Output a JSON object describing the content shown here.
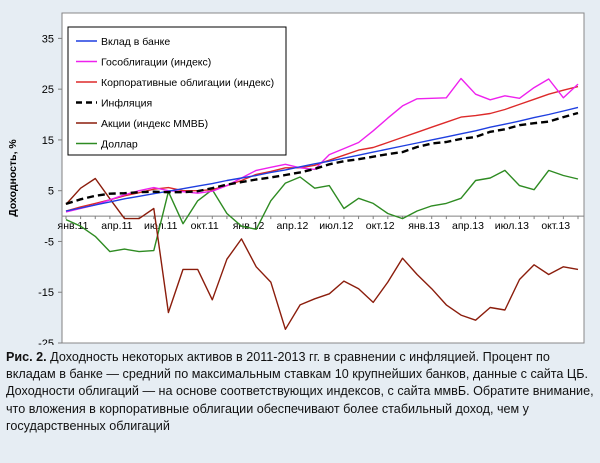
{
  "chart_data": {
    "type": "line",
    "ylabel": "Доходность, %",
    "ylim": [
      -25,
      40
    ],
    "yticks": [
      35,
      25,
      15,
      5,
      -5,
      -15,
      -25
    ],
    "xtick_labels": [
      "янв.11",
      "апр.11",
      "июл.11",
      "окт.11",
      "янв.12",
      "апр.12",
      "июл.12",
      "окт.12",
      "янв.13",
      "апр.13",
      "июл.13",
      "окт.13"
    ],
    "xtick_months": [
      0,
      3,
      6,
      9,
      12,
      15,
      18,
      21,
      24,
      27,
      30,
      33
    ],
    "x": [
      0,
      1,
      2,
      3,
      4,
      5,
      6,
      7,
      8,
      9,
      10,
      11,
      12,
      13,
      14,
      15,
      16,
      17,
      18,
      19,
      20,
      21,
      22,
      23,
      24,
      25,
      26,
      27,
      28,
      29,
      30,
      31,
      32,
      33,
      34,
      35
    ],
    "legend_position": "top-left",
    "grid": false,
    "series": [
      {
        "name": "Вклад в банке",
        "color": "#1f3fe0",
        "dash": "solid",
        "values": [
          1.0,
          1.6,
          2.2,
          2.8,
          3.4,
          3.9,
          4.4,
          4.9,
          5.4,
          5.9,
          6.4,
          7.0,
          7.5,
          8.0,
          8.6,
          9.1,
          9.7,
          10.3,
          10.8,
          11.4,
          12.0,
          12.6,
          13.2,
          13.8,
          14.4,
          15.0,
          15.6,
          16.2,
          16.8,
          17.5,
          18.1,
          18.7,
          19.4,
          20.0,
          20.7,
          21.4
        ]
      },
      {
        "name": "Гособлигации (индекс)",
        "color": "#ee21ee",
        "dash": "solid",
        "values": [
          0.8,
          1.5,
          2.2,
          3.2,
          4.2,
          5.0,
          5.6,
          5.0,
          4.8,
          4.5,
          4.9,
          6.0,
          7.5,
          9.0,
          9.6,
          10.2,
          9.5,
          9.2,
          12.1,
          13.3,
          14.5,
          16.8,
          19.3,
          21.7,
          23.1,
          23.2,
          23.3,
          27.1,
          24.0,
          22.9,
          23.7,
          23.2,
          25.3,
          27.0,
          23.3,
          26.0
        ]
      },
      {
        "name": "Корпоративные облигации (индекс)",
        "color": "#dd2a2a",
        "dash": "solid",
        "values": [
          1.0,
          1.8,
          2.5,
          3.2,
          4.0,
          4.6,
          5.3,
          5.6,
          5.0,
          5.0,
          5.2,
          6.0,
          7.0,
          8.2,
          8.8,
          9.5,
          9.5,
          10.0,
          11.0,
          12.0,
          13.0,
          13.5,
          14.5,
          15.5,
          16.5,
          17.5,
          18.5,
          19.5,
          19.8,
          20.2,
          21.0,
          22.0,
          23.0,
          24.0,
          24.8,
          25.5
        ]
      },
      {
        "name": "Инфляция",
        "color": "#000000",
        "dash": "dashed",
        "values": [
          2.4,
          3.3,
          4.0,
          4.4,
          4.5,
          4.7,
          4.8,
          4.7,
          4.7,
          4.9,
          5.5,
          6.2,
          6.7,
          7.2,
          7.6,
          8.1,
          8.6,
          9.3,
          10.2,
          10.8,
          11.2,
          11.7,
          12.2,
          12.6,
          13.6,
          14.3,
          14.6,
          15.2,
          15.6,
          16.6,
          17.1,
          17.9,
          18.3,
          18.6,
          19.5,
          20.3
        ]
      },
      {
        "name": "Акции (индекс ММВБ)",
        "color": "#8b1d0c",
        "dash": "solid",
        "values": [
          2.3,
          5.5,
          7.4,
          3.4,
          -0.5,
          -0.5,
          1.5,
          -19.0,
          -10.5,
          -10.5,
          -16.5,
          -8.5,
          -4.5,
          -10.0,
          -13.0,
          -22.3,
          -17.5,
          -16.3,
          -15.3,
          -12.8,
          -14.3,
          -17.0,
          -13.0,
          -8.3,
          -11.5,
          -14.3,
          -17.5,
          -19.5,
          -20.5,
          -18.0,
          -18.5,
          -12.5,
          -9.6,
          -11.5,
          -10.0,
          -10.5
        ]
      },
      {
        "name": "Доллар",
        "color": "#2e8b22",
        "dash": "solid",
        "values": [
          -0.7,
          -2.0,
          -4.0,
          -7.0,
          -6.5,
          -7.0,
          -6.8,
          4.8,
          -1.5,
          3.0,
          5.2,
          0.5,
          -2.0,
          -2.6,
          3.0,
          6.5,
          7.7,
          5.5,
          6.0,
          1.5,
          3.5,
          2.5,
          0.5,
          -0.5,
          1.0,
          2.0,
          2.5,
          3.5,
          7.0,
          7.5,
          9.0,
          6.0,
          5.2,
          9.0,
          8.0,
          7.3
        ]
      }
    ]
  },
  "caption": {
    "label": "Рис. 2.",
    "text": " Доходность некоторых активов в 2011-2013 гг. в сравнении с инфляцией. Процент по вкладам в банке — средний по максимальным ставкам 10 крупнейших банков, данные с сайта ЦБ. Доходности облигаций — на основе соответствующих индексов, с сайта ммвБ. Обратите внимание, что вложения в корпоративные облигации обеспечивают более стабильный доход, чем у государственных облигаций"
  }
}
